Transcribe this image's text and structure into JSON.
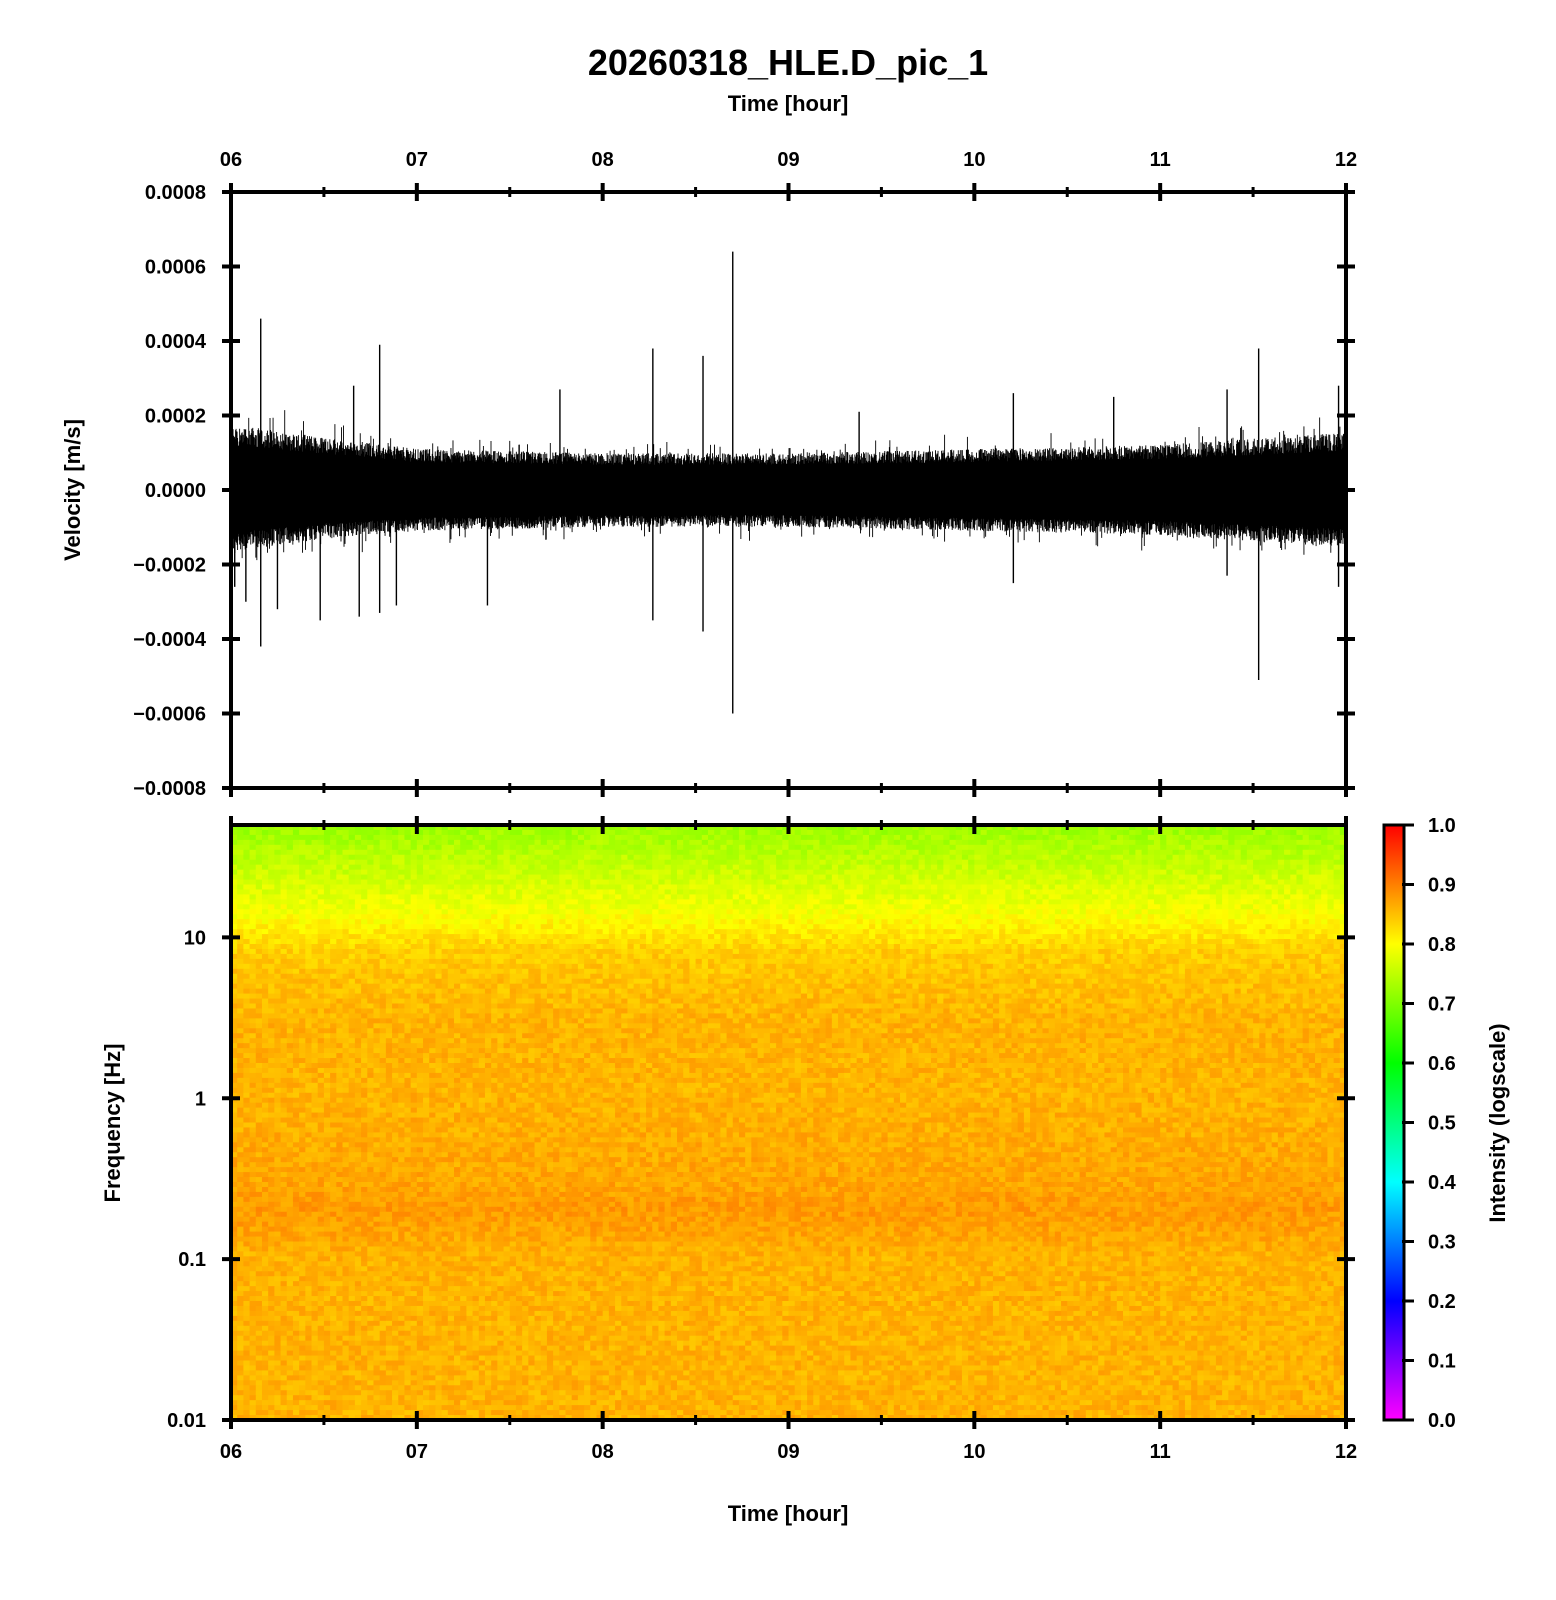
{
  "title": "20260318_HLE.D_pic_1",
  "chart_data": [
    {
      "type": "line",
      "panel": "waveform",
      "xlabel": "Time [hour]",
      "ylabel": "Velocity [m/s]",
      "x_tick_labels": [
        "06",
        "07",
        "08",
        "09",
        "10",
        "11",
        "12"
      ],
      "xlim": [
        6,
        12
      ],
      "ylim": [
        -0.0008,
        0.0008
      ],
      "y_ticks": [
        -0.0008,
        -0.0006,
        -0.0004,
        -0.0002,
        0,
        0.0002,
        0.0004,
        0.0006,
        0.0008
      ],
      "y_tick_labels": [
        "−0.0008",
        "−0.0006",
        "−0.0004",
        "−0.0002",
        "0.0000",
        "0.0002",
        "0.0004",
        "0.0006",
        "0.0008"
      ],
      "envelope": [
        {
          "x": 6.0,
          "upper": 0.00016,
          "lower": -0.00015
        },
        {
          "x": 6.5,
          "upper": 0.00013,
          "lower": -0.00012
        },
        {
          "x": 7.0,
          "upper": 0.0001,
          "lower": -0.0001
        },
        {
          "x": 8.0,
          "upper": 9e-05,
          "lower": -9e-05
        },
        {
          "x": 9.0,
          "upper": 9e-05,
          "lower": -9e-05
        },
        {
          "x": 10.0,
          "upper": 0.0001,
          "lower": -0.0001
        },
        {
          "x": 11.0,
          "upper": 0.00011,
          "lower": -0.00011
        },
        {
          "x": 12.0,
          "upper": 0.00014,
          "lower": -0.00014
        }
      ],
      "spikes": [
        {
          "x": 6.02,
          "y": -0.00026
        },
        {
          "x": 6.08,
          "y": -0.0003
        },
        {
          "x": 6.16,
          "y": 0.00046
        },
        {
          "x": 6.16,
          "y": -0.00042
        },
        {
          "x": 6.25,
          "y": -0.00032
        },
        {
          "x": 6.48,
          "y": -0.00035
        },
        {
          "x": 6.66,
          "y": 0.00028
        },
        {
          "x": 6.69,
          "y": -0.00034
        },
        {
          "x": 6.8,
          "y": 0.00039
        },
        {
          "x": 6.8,
          "y": -0.00033
        },
        {
          "x": 6.89,
          "y": -0.00031
        },
        {
          "x": 7.38,
          "y": -0.00031
        },
        {
          "x": 7.77,
          "y": 0.00027
        },
        {
          "x": 8.27,
          "y": 0.00038
        },
        {
          "x": 8.27,
          "y": -0.00035
        },
        {
          "x": 8.54,
          "y": 0.00036
        },
        {
          "x": 8.54,
          "y": -0.00038
        },
        {
          "x": 8.7,
          "y": 0.00064
        },
        {
          "x": 8.7,
          "y": -0.0006
        },
        {
          "x": 9.38,
          "y": 0.00021
        },
        {
          "x": 10.21,
          "y": 0.00026
        },
        {
          "x": 10.21,
          "y": -0.00025
        },
        {
          "x": 10.75,
          "y": 0.00025
        },
        {
          "x": 11.36,
          "y": 0.00027
        },
        {
          "x": 11.36,
          "y": -0.00023
        },
        {
          "x": 11.53,
          "y": 0.00038
        },
        {
          "x": 11.53,
          "y": -0.00051
        },
        {
          "x": 11.96,
          "y": 0.00028
        },
        {
          "x": 11.96,
          "y": -0.00026
        }
      ]
    },
    {
      "type": "heatmap",
      "panel": "spectrogram",
      "xlabel": "Time [hour]",
      "ylabel": "Frequency [Hz]",
      "x_tick_labels": [
        "06",
        "07",
        "08",
        "09",
        "10",
        "11",
        "12"
      ],
      "xlim": [
        6,
        12
      ],
      "ylim": [
        0.01,
        50
      ],
      "y_scale": "log",
      "y_ticks": [
        0.01,
        0.1,
        1,
        10
      ],
      "y_tick_labels": [
        "0.01",
        "0.1",
        "1",
        "10"
      ],
      "intensity_profile": [
        {
          "freq": 50,
          "value": 0.72
        },
        {
          "freq": 30,
          "value": 0.75
        },
        {
          "freq": 15,
          "value": 0.79
        },
        {
          "freq": 8,
          "value": 0.84
        },
        {
          "freq": 3,
          "value": 0.86
        },
        {
          "freq": 1,
          "value": 0.86
        },
        {
          "freq": 0.3,
          "value": 0.87
        },
        {
          "freq": 0.2,
          "value": 0.88
        },
        {
          "freq": 0.1,
          "value": 0.86
        },
        {
          "freq": 0.01,
          "value": 0.86
        }
      ],
      "colorbar": {
        "label": "Intensity (logscale)",
        "range": [
          0.0,
          1.0
        ],
        "ticks": [
          0.0,
          0.1,
          0.2,
          0.3,
          0.4,
          0.5,
          0.6,
          0.7,
          0.8,
          0.9,
          1.0
        ],
        "tick_labels": [
          "0.0",
          "0.1",
          "0.2",
          "0.3",
          "0.4",
          "0.5",
          "0.6",
          "0.7",
          "0.8",
          "0.9",
          "1.0"
        ],
        "colors": [
          "#ff00ff",
          "#0000ff",
          "#00ffff",
          "#00ff00",
          "#ffff00",
          "#ff0000"
        ]
      }
    }
  ]
}
